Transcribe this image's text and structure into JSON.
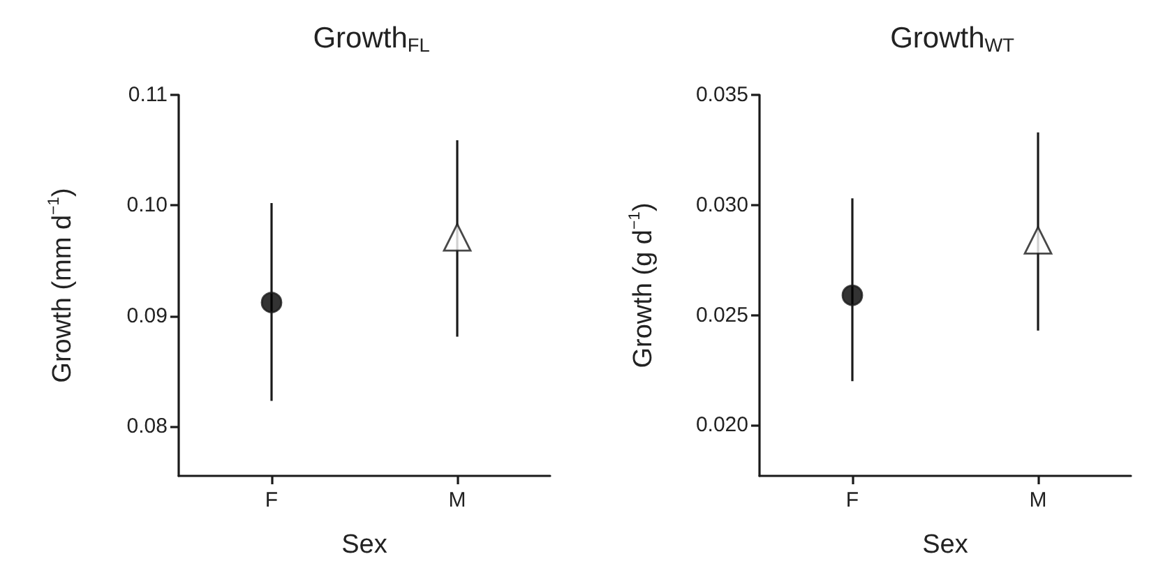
{
  "chart_data": [
    {
      "type": "scatter",
      "title": "Growth$_{FL}$",
      "xlabel": "Sex",
      "ylabel": "Growth (mm d$^{−1}$)",
      "categories": [
        "F",
        "M"
      ],
      "series": [
        {
          "color": "#000000",
          "marker": "circle",
          "values": [
            0.0912,
            null
          ],
          "errors": [
            [
              0.0823,
              0.1002
            ],
            null
          ]
        },
        {
          "color": "#ffffff",
          "marker": "triangle",
          "values": [
            null,
            0.0971
          ],
          "errors": [
            null,
            [
              0.0881,
              0.1059
            ]
          ]
        }
      ],
      "ylim": [
        0.0755,
        0.11
      ],
      "yticks": [
        0.08,
        0.09,
        {
          "value": 0.1,
          "label": "0.10"
        },
        0.11
      ],
      "grid": false
    },
    {
      "type": "scatter",
      "title": "Growth$_{WT}$",
      "xlabel": "Sex",
      "ylabel": "Growth (g d$^{−1}$)",
      "categories": [
        "F",
        "M"
      ],
      "series": [
        {
          "color": "#000000",
          "marker": "circle",
          "values": [
            0.0259,
            null
          ],
          "errors": [
            [
              0.022,
              0.0303
            ],
            null
          ]
        },
        {
          "color": "#ffffff",
          "marker": "triangle",
          "values": [
            null,
            0.0284
          ],
          "errors": [
            null,
            [
              0.0243,
              0.0333
            ]
          ]
        }
      ],
      "ylim": [
        0.0177,
        0.035
      ],
      "yticks": [
        {
          "value": 0.02,
          "label": "0.020"
        },
        0.025,
        {
          "value": 0.03,
          "label": "0.030"
        },
        0.035
      ],
      "grid": false
    }
  ]
}
